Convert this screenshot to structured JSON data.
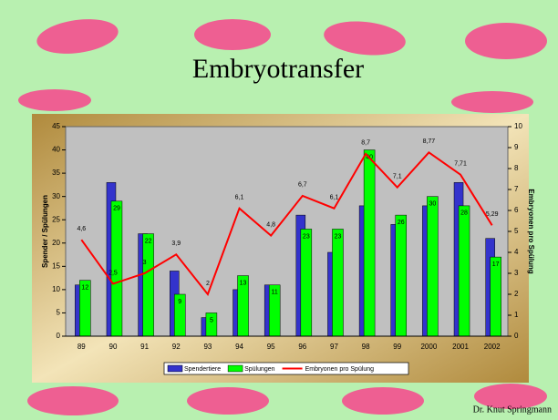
{
  "title": "Embryotransfer",
  "footer": "Dr. Knut Springmann",
  "chart_data": {
    "type": "bar",
    "categories": [
      "89",
      "90",
      "91",
      "92",
      "93",
      "94",
      "95",
      "96",
      "97",
      "98",
      "99",
      "2000",
      "2001",
      "2002"
    ],
    "series": [
      {
        "name": "Spendertiere",
        "color": "#3333cc",
        "values": [
          11,
          33,
          22,
          14,
          4,
          10,
          11,
          26,
          18,
          28,
          24,
          28,
          33,
          21
        ]
      },
      {
        "name": "Spülungen",
        "color": "#00ff00",
        "values": [
          12,
          29,
          22,
          9,
          5,
          13,
          11,
          23,
          23,
          40,
          26,
          30,
          28,
          17
        ],
        "data_labels": true
      },
      {
        "name": "Embryonen pro Spülung",
        "color": "#ff0000",
        "type": "line",
        "axis": "y2",
        "values": [
          4.6,
          2.5,
          3,
          3.9,
          2,
          6.1,
          4.8,
          6.7,
          6.1,
          8.7,
          7.1,
          8.77,
          7.71,
          5.29
        ],
        "value_labels": [
          "4,6",
          "2,5",
          "3",
          "3,9",
          "2",
          "6,1",
          "4,8",
          "6,7",
          "6,1",
          "8,7",
          "7,1",
          "8,77",
          "7,71",
          "5,29"
        ]
      }
    ],
    "y_label": "Spender / Spülungen",
    "y2_label": "Embryonen pro Spülung",
    "ylim": [
      0,
      45
    ],
    "yticks": [
      0,
      5,
      10,
      15,
      20,
      25,
      30,
      35,
      40,
      45
    ],
    "y2lim": [
      0,
      10
    ],
    "y2ticks": [
      0,
      1,
      2,
      3,
      4,
      5,
      6,
      7,
      8,
      9,
      10
    ]
  }
}
